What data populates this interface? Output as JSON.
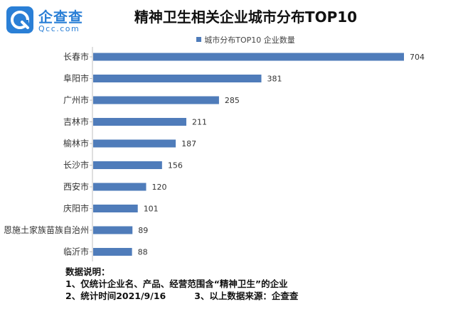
{
  "brand": {
    "name": "企查查",
    "domain": "Qcc.com"
  },
  "chart_data": {
    "type": "bar",
    "orientation": "horizontal",
    "title": "精神卫生相关企业城市分布TOP10",
    "legend": {
      "position": "top",
      "entries": [
        "城市分布TOP10 企业数量"
      ]
    },
    "series": [
      {
        "name": "城市分布TOP10 企业数量",
        "color": "#4f7cba"
      }
    ],
    "categories": [
      "长春市",
      "阜阳市",
      "广州市",
      "吉林市",
      "榆林市",
      "长沙市",
      "西安市",
      "庆阳市",
      "恩施土家族苗族自治州",
      "临沂市"
    ],
    "values": [
      704,
      381,
      285,
      211,
      187,
      156,
      120,
      101,
      89,
      88
    ],
    "xlim": [
      0,
      704
    ],
    "grid": false
  },
  "notes": {
    "heading": "数据说明：",
    "line1": "1、仅统计企业名、产品、经营范围含“精神卫生”的企业",
    "line2a": "2、统计时间2021/9/16",
    "line2b": "3、以上数据来源：企查查"
  }
}
